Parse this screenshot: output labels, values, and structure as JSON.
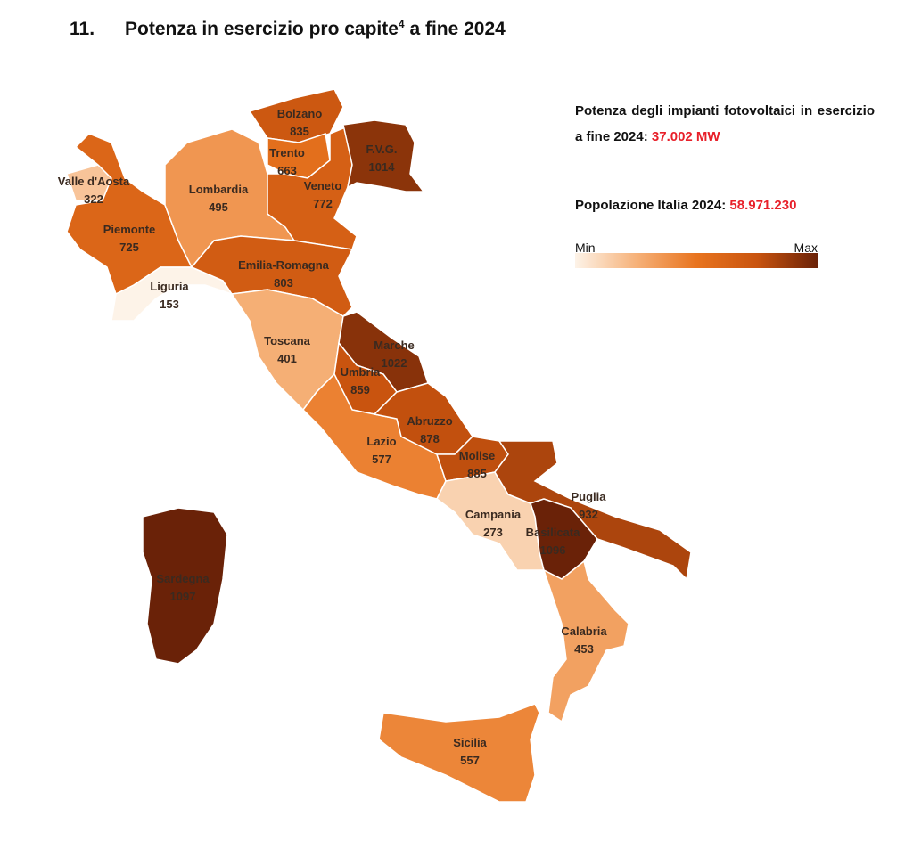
{
  "title": {
    "number": "11.",
    "text": "Potenza in esercizio pro capite",
    "footnote": "4",
    "suffix": " a fine 2024"
  },
  "info": {
    "power_label": "Potenza degli impianti fotovoltaici in esercizio a fine 2024:",
    "power_value": "37.002 MW",
    "population_label": "Popolazione Italia 2024:",
    "population_value": "58.971.230"
  },
  "legend": {
    "min_label": "Min",
    "max_label": "Max",
    "colors": [
      "#fdf3e8",
      "#f6b27a",
      "#e8741f",
      "#c9540f",
      "#6a2208"
    ]
  },
  "regions": [
    {
      "name": "Valle d'Aosta",
      "value": 322
    },
    {
      "name": "Piemonte",
      "value": 725
    },
    {
      "name": "Liguria",
      "value": 153
    },
    {
      "name": "Lombardia",
      "value": 495
    },
    {
      "name": "Bolzano",
      "value": 835
    },
    {
      "name": "Trento",
      "value": 663
    },
    {
      "name": "Veneto",
      "value": 772
    },
    {
      "name": "F.V.G.",
      "value": 1014
    },
    {
      "name": "Emilia-Romagna",
      "value": 803
    },
    {
      "name": "Toscana",
      "value": 401
    },
    {
      "name": "Marche",
      "value": 1022
    },
    {
      "name": "Umbria",
      "value": 859
    },
    {
      "name": "Lazio",
      "value": 577
    },
    {
      "name": "Abruzzo",
      "value": 878
    },
    {
      "name": "Molise",
      "value": 885
    },
    {
      "name": "Campania",
      "value": 273
    },
    {
      "name": "Puglia",
      "value": 932
    },
    {
      "name": "Basilicata",
      "value": 1096
    },
    {
      "name": "Calabria",
      "value": 453
    },
    {
      "name": "Sicilia",
      "value": 557
    },
    {
      "name": "Sardegna",
      "value": 1097
    }
  ]
}
